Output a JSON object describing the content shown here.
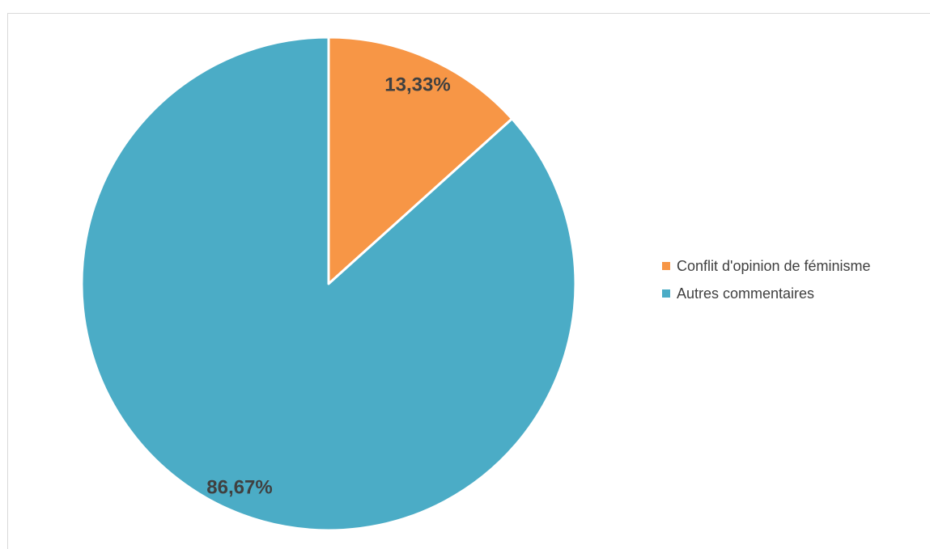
{
  "chart_data": {
    "type": "pie",
    "title": "",
    "legend_position": "right",
    "categories": [
      "Conflit d'opinion de féminisme",
      "Autres commentaires"
    ],
    "values": [
      13.33,
      86.67
    ],
    "data_labels": [
      "13,33%",
      "86,67%"
    ],
    "colors": [
      "#F79646",
      "#4BACC6"
    ]
  }
}
